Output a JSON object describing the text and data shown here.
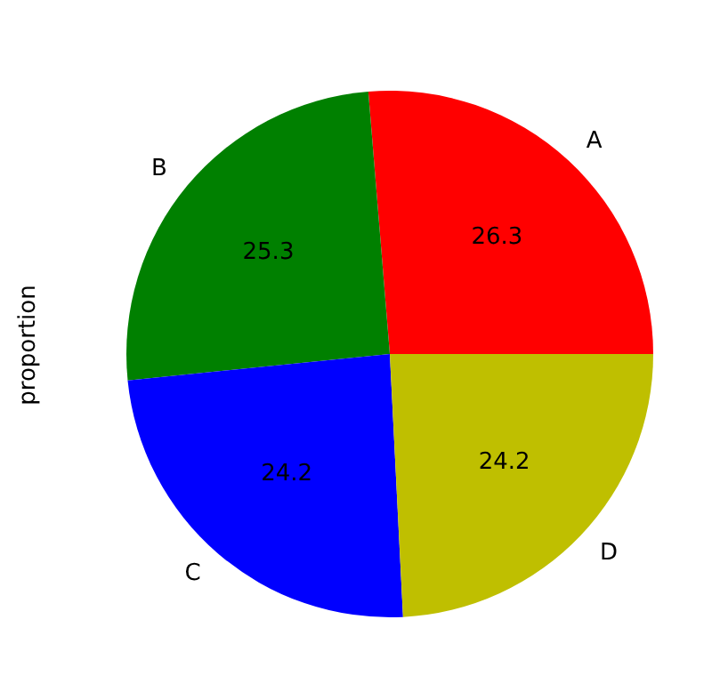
{
  "chart_data": {
    "type": "pie",
    "ylabel": "proportion",
    "categories": [
      "A",
      "B",
      "C",
      "D"
    ],
    "values": [
      26.3,
      25.3,
      24.2,
      24.2
    ],
    "colors": [
      "#ff0000",
      "#008000",
      "#0000ff",
      "#bfbf00"
    ],
    "data_labels": true,
    "legend": false
  }
}
